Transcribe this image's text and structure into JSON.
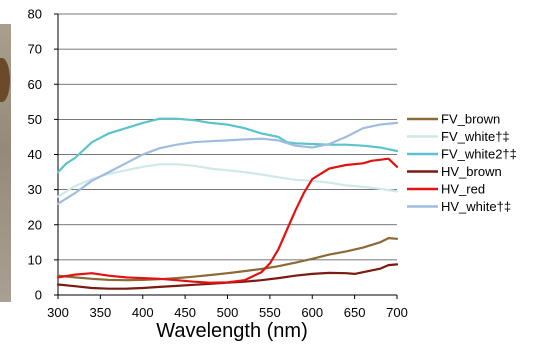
{
  "chart_data": {
    "type": "line",
    "title": "",
    "xlabel": "Wavelength (nm)",
    "ylabel": "",
    "xlim": [
      300,
      700
    ],
    "ylim": [
      0,
      80
    ],
    "xticks": [
      300,
      350,
      400,
      450,
      500,
      550,
      600,
      650,
      700
    ],
    "yticks": [
      0,
      10,
      20,
      30,
      40,
      50,
      60,
      70,
      80
    ],
    "grid": "horizontal",
    "legend": "right",
    "series": [
      {
        "name": "FV_brown",
        "color": "#8b6a35",
        "x": [
          300,
          320,
          340,
          360,
          380,
          400,
          420,
          440,
          460,
          480,
          500,
          520,
          540,
          560,
          580,
          600,
          620,
          640,
          660,
          680,
          690,
          700
        ],
        "y": [
          5.5,
          5.0,
          4.6,
          4.3,
          4.2,
          4.3,
          4.5,
          4.8,
          5.2,
          5.7,
          6.2,
          6.8,
          7.4,
          8.2,
          9.2,
          10.3,
          11.5,
          12.4,
          13.5,
          15.0,
          16.2,
          16.0
        ]
      },
      {
        "name": "FV_white†‡",
        "color": "#cfe8e8",
        "x": [
          300,
          320,
          340,
          360,
          380,
          400,
          420,
          440,
          460,
          480,
          500,
          520,
          540,
          560,
          580,
          600,
          620,
          640,
          660,
          680,
          700
        ],
        "y": [
          28.0,
          31.0,
          33.0,
          34.5,
          35.5,
          36.5,
          37.2,
          37.2,
          36.8,
          36.0,
          35.5,
          35.0,
          34.3,
          33.5,
          32.8,
          32.5,
          32.0,
          31.2,
          30.8,
          30.2,
          29.5
        ]
      },
      {
        "name": "FV_white2†‡",
        "color": "#5cc3cc",
        "x": [
          300,
          310,
          320,
          340,
          360,
          380,
          400,
          420,
          440,
          460,
          480,
          500,
          520,
          540,
          560,
          570,
          580,
          600,
          620,
          640,
          660,
          680,
          700
        ],
        "y": [
          35.0,
          37.5,
          39.0,
          43.5,
          46.0,
          47.5,
          49.0,
          50.2,
          50.2,
          49.8,
          49.0,
          48.5,
          47.5,
          46.0,
          45.0,
          43.5,
          43.2,
          43.0,
          42.8,
          42.8,
          42.5,
          42.0,
          41.0
        ]
      },
      {
        "name": "HV_brown",
        "color": "#7a1a10",
        "x": [
          300,
          320,
          340,
          360,
          380,
          400,
          420,
          440,
          460,
          480,
          500,
          520,
          540,
          560,
          580,
          600,
          620,
          640,
          650,
          660,
          680,
          690,
          700
        ],
        "y": [
          3.0,
          2.5,
          2.0,
          1.8,
          1.8,
          2.0,
          2.3,
          2.6,
          2.9,
          3.2,
          3.5,
          3.8,
          4.2,
          4.8,
          5.5,
          6.0,
          6.3,
          6.2,
          6.0,
          6.5,
          7.5,
          8.5,
          8.7
        ]
      },
      {
        "name": "HV_red",
        "color": "#e21212",
        "x": [
          300,
          320,
          340,
          360,
          380,
          400,
          420,
          440,
          460,
          480,
          500,
          520,
          540,
          550,
          560,
          570,
          580,
          590,
          600,
          620,
          640,
          660,
          670,
          680,
          690,
          700
        ],
        "y": [
          5.0,
          5.8,
          6.2,
          5.5,
          5.0,
          4.8,
          4.6,
          4.2,
          3.8,
          3.5,
          3.6,
          4.2,
          6.5,
          9.0,
          13.0,
          18.5,
          24.0,
          29.0,
          33.0,
          36.0,
          37.0,
          37.5,
          38.2,
          38.5,
          38.8,
          36.5
        ]
      },
      {
        "name": "HV_white†‡",
        "color": "#9fbde0",
        "x": [
          300,
          320,
          340,
          360,
          380,
          400,
          420,
          440,
          460,
          480,
          500,
          520,
          540,
          560,
          580,
          600,
          620,
          640,
          660,
          680,
          700
        ],
        "y": [
          26.0,
          29.0,
          32.5,
          35.0,
          37.5,
          40.0,
          41.8,
          42.8,
          43.5,
          43.8,
          44.0,
          44.3,
          44.5,
          44.0,
          42.5,
          42.0,
          43.0,
          45.0,
          47.5,
          48.5,
          49.0
        ]
      }
    ]
  }
}
